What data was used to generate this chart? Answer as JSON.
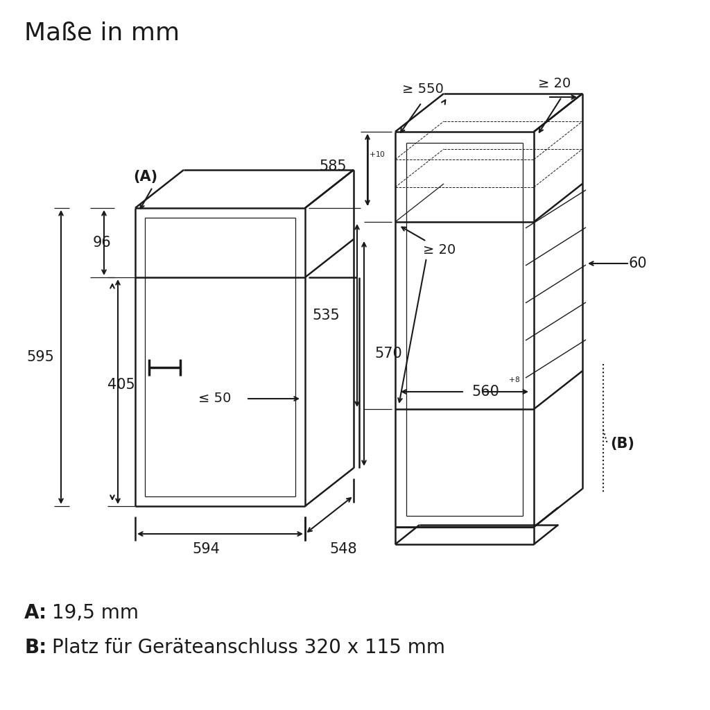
{
  "title": "Maße in mm",
  "bg_color": "#ffffff",
  "lc": "#1a1a1a",
  "footnote_A_bold": "A:",
  "footnote_A_text": " 19,5 mm",
  "footnote_B_bold": "B:",
  "footnote_B_text": " Platz für Geräteanschluss 320 x 115 mm"
}
